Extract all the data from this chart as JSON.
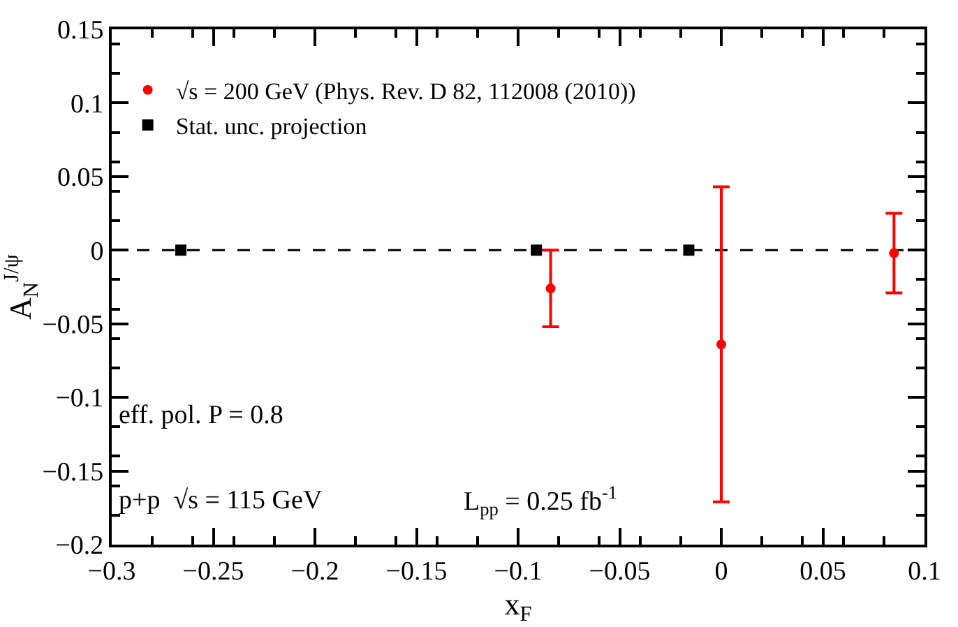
{
  "chart_data": {
    "type": "scatter",
    "xlabel": "x$_{F}$",
    "ylabel": "A$_{N}$$^{J/ψ}$",
    "xlim": [
      -0.3,
      0.1
    ],
    "xticks": [
      -0.3,
      -0.25,
      -0.2,
      -0.15,
      -0.1,
      -0.05,
      0,
      0.05,
      0.1
    ],
    "ylim": [
      -0.2,
      0.15
    ],
    "yticks": [
      -0.2,
      -0.15,
      -0.1,
      -0.05,
      0,
      0.05,
      0.1,
      0.15
    ],
    "grid": false,
    "legend": "top left",
    "series": [
      {
        "name": "√s = 200 GeV (Phys. Rev. D 82, 112008 (2010))",
        "color": "#ff0000",
        "marker": "circle",
        "x": [
          -0.084,
          0.0,
          0.085
        ],
        "values": [
          -0.026,
          -0.064,
          -0.002
        ],
        "errors": [
          0.026,
          0.107,
          0.027
        ]
      },
      {
        "name": "Stat. unc. projection",
        "color": "#000000",
        "marker": "square",
        "x": [
          -0.266,
          -0.091,
          -0.016
        ],
        "values": [
          0,
          0,
          0
        ]
      }
    ],
    "ref_lines": [
      {
        "axis": "y",
        "value": 0,
        "line_style": "dashed",
        "color": "#000000"
      }
    ],
    "annotations": [
      "eff. pol. P = 0.8",
      "p+p  √s = 115 GeV",
      "L$_{pp}$ = 0.25 fb$^{-1}$"
    ]
  }
}
